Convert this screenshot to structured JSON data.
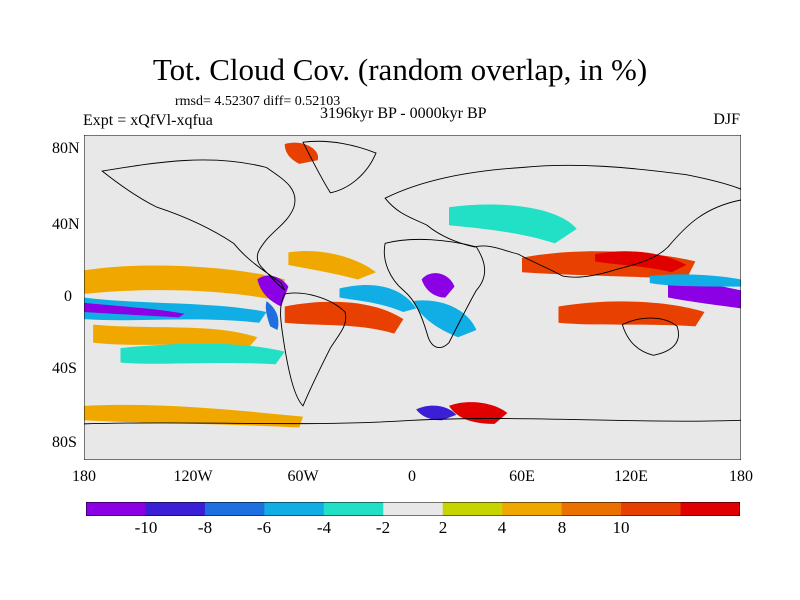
{
  "title": "Tot. Cloud Cov. (random overlap, in %)",
  "stats": "rmsd= 4.52307 diff= 0.52103",
  "experiment": "Expt = xQfVl-xqfua",
  "period": "3196kyr BP - 0000kyr BP",
  "season": "DJF",
  "y_axis_labels": [
    "80N",
    "40N",
    "0",
    "40S",
    "80S"
  ],
  "x_axis_labels": [
    "180",
    "120W",
    "60W",
    "0",
    "60E",
    "120E",
    "180"
  ],
  "colorbar": {
    "colors": [
      "#8c00e6",
      "#3a1fd6",
      "#1e6fe0",
      "#11aee6",
      "#22e0c6",
      "#e8e8e8",
      "#c8d400",
      "#f0a800",
      "#ea7000",
      "#e84000",
      "#e00000"
    ],
    "labels": [
      "-10",
      "-8",
      "-6",
      "-4",
      "-2",
      "2",
      "4",
      "8",
      "10"
    ]
  },
  "map_colors": {
    "background": "#e8e8e8",
    "coastline": "#000000"
  }
}
